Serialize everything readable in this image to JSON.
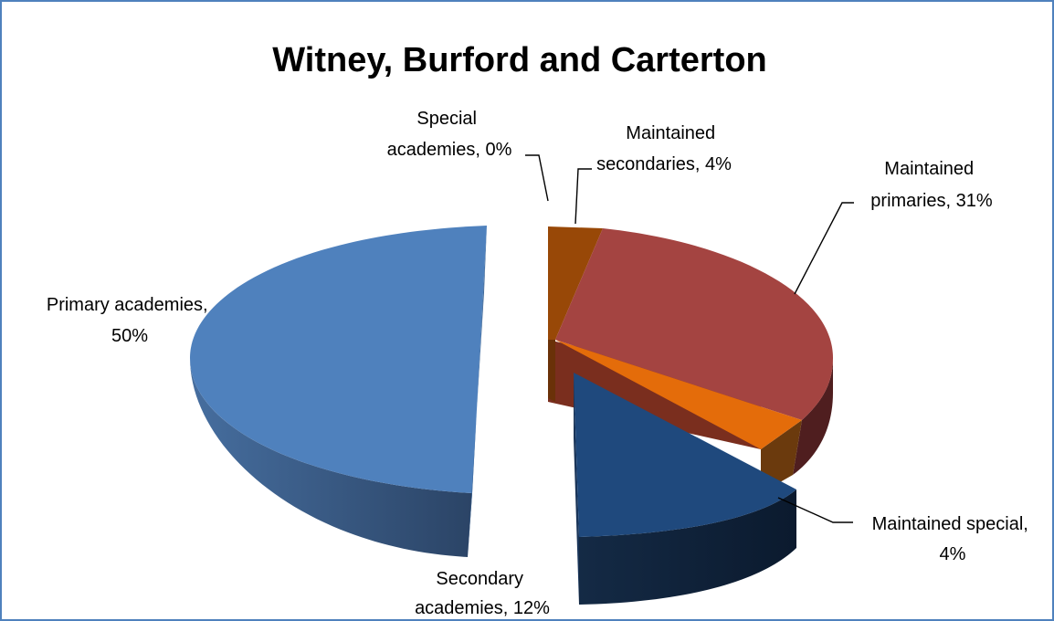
{
  "chart_data": {
    "type": "pie",
    "title": "Witney, Burford and Carterton",
    "slices": [
      {
        "name": "Special academies",
        "value": 0,
        "label_lines": [
          "Special",
          "academies, 0%"
        ],
        "color": "#7f3f00"
      },
      {
        "name": "Maintained secondaries",
        "value": 4,
        "label_lines": [
          "Maintained",
          "secondaries, 4%"
        ],
        "color": "#984807"
      },
      {
        "name": "Maintained primaries",
        "value": 31,
        "label_lines": [
          "Maintained",
          "primaries, 31%"
        ],
        "color": "#a44441"
      },
      {
        "name": "Maintained special",
        "value": 4,
        "label_lines": [
          "Maintained special,",
          "4%"
        ],
        "color": "#e46c0a"
      },
      {
        "name": "Secondary academies",
        "value": 12,
        "label_lines": [
          "Secondary",
          "academies, 12%"
        ],
        "color": "#1f497d"
      },
      {
        "name": "Primary academies",
        "value": 50,
        "label_lines": [
          "Primary academies,",
          "50%"
        ],
        "color": "#4f81bd"
      }
    ]
  }
}
